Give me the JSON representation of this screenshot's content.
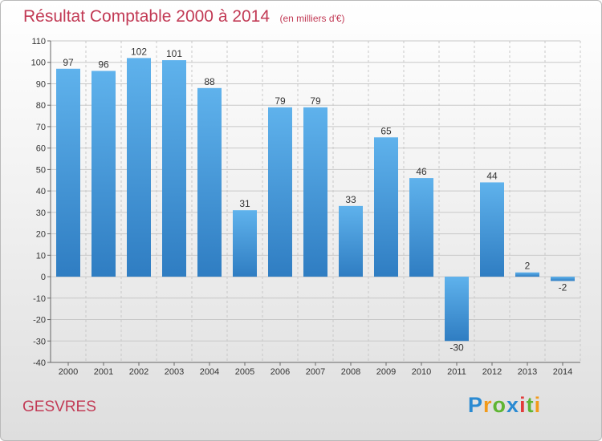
{
  "title": "Résultat Comptable 2000 à 2014",
  "unit": "(en milliers d'€)",
  "commune": "GESVRES",
  "logo": {
    "text": "Proxiti",
    "letters": [
      {
        "ch": "P",
        "color": "#2a8ad2"
      },
      {
        "ch": "r",
        "color": "#f29a1a"
      },
      {
        "ch": "o",
        "color": "#5fb533"
      },
      {
        "ch": "x",
        "color": "#2a8ad2"
      },
      {
        "ch": "i",
        "color": "#e23b3b"
      },
      {
        "ch": "t",
        "color": "#5fb533"
      },
      {
        "ch": "i",
        "color": "#f29a1a"
      }
    ]
  },
  "colors": {
    "title": "#c23a55",
    "bar_top": "#5fb2ec",
    "bar_bottom": "#2f7dc2",
    "grid": "#c8c8c8"
  },
  "chart_data": {
    "type": "bar",
    "title": "Résultat Comptable 2000 à 2014",
    "subtitle": "(en milliers d'€)",
    "xlabel": "",
    "ylabel": "",
    "categories": [
      "2000",
      "2001",
      "2002",
      "2003",
      "2004",
      "2005",
      "2006",
      "2007",
      "2008",
      "2009",
      "2010",
      "2011",
      "2012",
      "2013",
      "2014"
    ],
    "values": [
      97,
      96,
      102,
      101,
      88,
      31,
      79,
      79,
      33,
      65,
      46,
      -30,
      44,
      2,
      -2
    ],
    "ylim": [
      -40,
      110
    ],
    "yticks": [
      110,
      100,
      90,
      80,
      70,
      60,
      50,
      40,
      30,
      20,
      10,
      0,
      -10,
      -20,
      -30,
      -40
    ],
    "grid": true
  }
}
